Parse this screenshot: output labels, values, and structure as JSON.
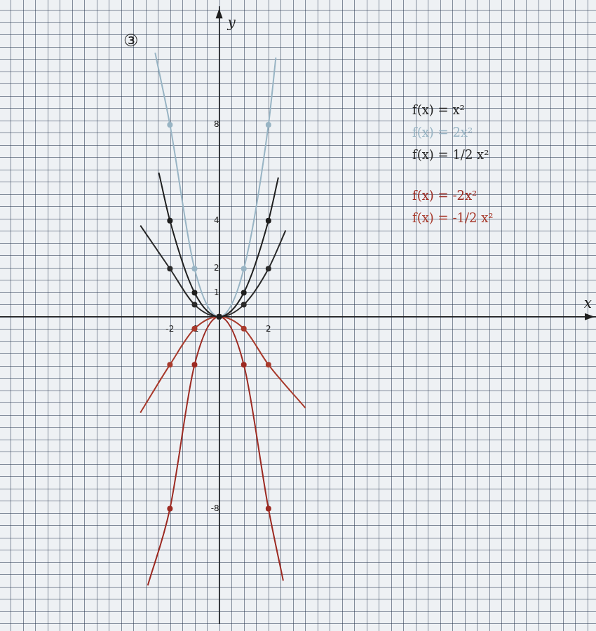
{
  "chart_data": {
    "type": "line",
    "title": "③",
    "xlabel": "x",
    "ylabel": "y",
    "xlim": [
      -8.9,
      15.3
    ],
    "ylim": [
      -12.8,
      12.9
    ],
    "xticks": [
      -2,
      -1,
      2
    ],
    "yticks": [
      -8,
      1,
      2,
      4,
      8
    ],
    "grid": true,
    "legend": "upper right",
    "series": [
      {
        "name": "f(x) = x²",
        "color": "#1f1f1f",
        "marker": "circle",
        "x": [
          -2.45,
          -2,
          -1,
          0,
          1,
          2,
          2.4
        ],
        "values": [
          6,
          4,
          1,
          0,
          1,
          4,
          5.8
        ]
      },
      {
        "name": "f(x) = 2x²",
        "color": "#98b4c4",
        "marker": "circle",
        "x": [
          -2.6,
          -2,
          -1,
          0,
          1,
          2,
          2.3
        ],
        "values": [
          11,
          8,
          2,
          0,
          2,
          8,
          10.8
        ]
      },
      {
        "name": "f(x) = 1/2 x²",
        "color": "#2a2a2a",
        "marker": "circle",
        "x": [
          -3.2,
          -2,
          -1,
          0,
          1,
          2,
          2.7
        ],
        "values": [
          3.8,
          2,
          0.5,
          0,
          0.5,
          2,
          3.6
        ]
      },
      {
        "name": "f(x) = -2x²",
        "color": "#9c2a22",
        "marker": "circle",
        "x": [
          -2.9,
          -2,
          -1,
          0,
          1,
          2,
          2.6
        ],
        "values": [
          -11.2,
          -8,
          -2,
          0,
          -2,
          -8,
          -11
        ]
      },
      {
        "name": "f(x) = -1/2 x²",
        "color": "#a83a2c",
        "marker": "circle",
        "x": [
          -3.2,
          -2,
          -1,
          0,
          1,
          2,
          3.5
        ],
        "values": [
          -4,
          -2,
          -0.5,
          0,
          -0.5,
          -2,
          -3.8
        ]
      }
    ]
  }
}
